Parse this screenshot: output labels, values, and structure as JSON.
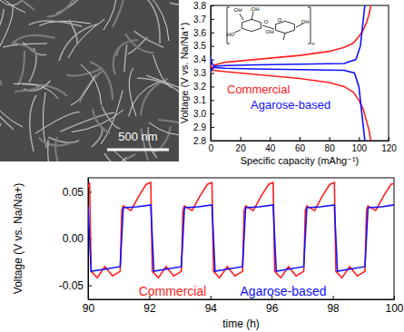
{
  "image": {
    "scale_bar_label": "500 nm"
  },
  "chart_data": [
    {
      "type": "line",
      "xlabel": "Specific capacity (mAhg⁻¹)",
      "ylabel": "Voltage (V vs. Na/Na⁺)",
      "xlim": [
        0,
        120
      ],
      "ylim": [
        2.8,
        3.8
      ],
      "xticks": [
        0,
        20,
        40,
        60,
        80,
        100,
        120
      ],
      "yticks": [
        2.8,
        2.9,
        {
          "value": 3,
          "label": "3.0"
        },
        3.1,
        3.2,
        3.3,
        3.4,
        3.5,
        3.6,
        3.7,
        3.8
      ],
      "annotations": [
        "OH",
        "OH",
        "OH",
        "O",
        "HO",
        "O",
        "OH",
        "n"
      ],
      "series": [
        {
          "name": "Commercial",
          "color": "#ff2020",
          "x": [
            0,
            1,
            3,
            10,
            20,
            40,
            60,
            80,
            90,
            96,
            100,
            103,
            105,
            107,
            108,
            null,
            0,
            2,
            10,
            20,
            40,
            60,
            80,
            90,
            96,
            100,
            103,
            105,
            107,
            108
          ],
          "values": [
            3.3,
            3.33,
            3.36,
            3.38,
            3.39,
            3.41,
            3.43,
            3.46,
            3.49,
            3.52,
            3.57,
            3.62,
            3.67,
            3.74,
            3.8,
            null,
            3.36,
            3.32,
            3.31,
            3.3,
            3.28,
            3.26,
            3.23,
            3.2,
            3.16,
            3.1,
            3.03,
            2.95,
            2.87,
            2.8
          ]
        },
        {
          "name": "Agarose-based",
          "color": "#1010ff",
          "x": [
            0,
            1,
            3,
            10,
            30,
            60,
            90,
            98,
            101,
            102,
            103,
            104,
            null,
            0,
            1,
            3,
            10,
            30,
            60,
            90,
            97,
            100,
            101,
            102,
            103,
            104
          ],
          "values": [
            3.31,
            3.33,
            3.35,
            3.355,
            3.36,
            3.365,
            3.37,
            3.4,
            3.5,
            3.6,
            3.7,
            3.8,
            null,
            3.42,
            3.37,
            3.34,
            3.335,
            3.33,
            3.325,
            3.32,
            3.3,
            3.2,
            3.1,
            3.0,
            2.9,
            2.8
          ]
        }
      ]
    },
    {
      "type": "line",
      "xlabel": "time (h)",
      "ylabel": "Voltage (V vs. Na/Na+)",
      "xlim": [
        90,
        100
      ],
      "ylim": [
        -0.065,
        0.065
      ],
      "xticks": [
        90,
        92,
        94,
        96,
        98,
        100
      ],
      "yticks": [
        -0.05,
        {
          "value": 0,
          "label": "0.00"
        },
        0.05
      ],
      "series": [
        {
          "name": "Commercial",
          "color": "#ff2020",
          "x": [
            90,
            90.05,
            90.1,
            90.3,
            90.55,
            90.8,
            91.05,
            91.1,
            91.15,
            91.4,
            91.65,
            91.9,
            92.05,
            92.1,
            92.3,
            92.55,
            92.8,
            93.05,
            93.1,
            93.15,
            93.4,
            93.65,
            93.9,
            94.05,
            94.1,
            94.3,
            94.55,
            94.8,
            95.05,
            95.1,
            95.15,
            95.4,
            95.65,
            95.9,
            96.05,
            96.1,
            96.3,
            96.55,
            96.8,
            97.05,
            97.1,
            97.15,
            97.4,
            97.65,
            97.9,
            98.05,
            98.1,
            98.3,
            98.55,
            98.8,
            99.05,
            99.1,
            99.15,
            99.4,
            99.65,
            99.9,
            100
          ],
          "values": [
            0.055,
            0.06,
            -0.035,
            -0.042,
            -0.03,
            -0.04,
            -0.035,
            0.03,
            0.035,
            0.03,
            0.045,
            0.058,
            0.06,
            -0.035,
            -0.042,
            -0.03,
            -0.04,
            -0.035,
            0.03,
            0.035,
            0.03,
            0.045,
            0.058,
            0.06,
            -0.035,
            -0.042,
            -0.03,
            -0.04,
            -0.035,
            0.03,
            0.035,
            0.03,
            0.045,
            0.058,
            0.06,
            -0.035,
            -0.042,
            -0.03,
            -0.04,
            -0.035,
            0.03,
            0.035,
            0.03,
            0.045,
            0.058,
            0.06,
            -0.035,
            -0.042,
            -0.03,
            -0.04,
            -0.035,
            0.03,
            0.035,
            0.03,
            0.045,
            0.058,
            0.059
          ]
        },
        {
          "name": "Agarose-based",
          "color": "#1010ff",
          "x": [
            90,
            90.1,
            90.5,
            91.05,
            91.15,
            91.6,
            92.05,
            92.15,
            92.5,
            93.05,
            93.15,
            93.6,
            94.05,
            94.15,
            94.5,
            95.05,
            95.15,
            95.6,
            96.05,
            96.15,
            96.5,
            97.05,
            97.15,
            97.6,
            98.05,
            98.15,
            98.5,
            99.05,
            99.15,
            99.6,
            100
          ],
          "values": [
            0.035,
            -0.035,
            -0.033,
            -0.03,
            0.033,
            0.034,
            0.036,
            -0.035,
            -0.033,
            -0.03,
            0.033,
            0.034,
            0.036,
            -0.035,
            -0.033,
            -0.03,
            0.033,
            0.034,
            0.036,
            -0.035,
            -0.033,
            -0.03,
            0.033,
            0.034,
            0.036,
            -0.035,
            -0.033,
            -0.03,
            0.033,
            0.034,
            0.036
          ]
        }
      ]
    }
  ]
}
